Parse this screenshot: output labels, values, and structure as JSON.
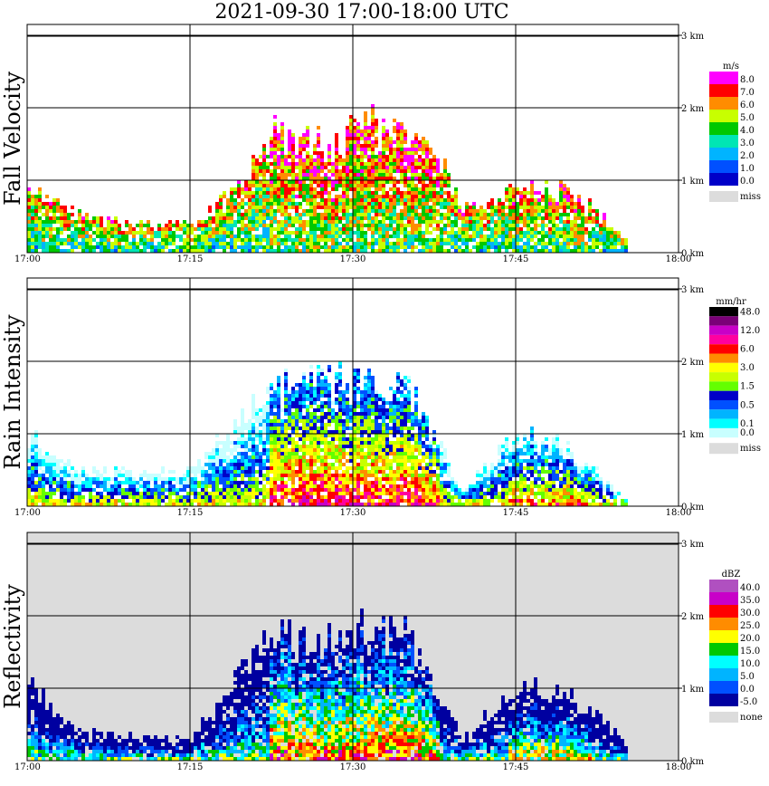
{
  "title": "2021-09-30   17:00-18:00 UTC",
  "time_labels": [
    "17:00",
    "17:15",
    "17:30",
    "17:45",
    "18:00"
  ],
  "height_labels": [
    "0 km",
    "1 km",
    "2 km",
    "3 km"
  ],
  "panels": [
    {
      "ylabel": "Fall Velocity",
      "unit": "m/s",
      "background": "#ffffff",
      "legend": [
        {
          "label": "8.0",
          "color": "#ff00ff"
        },
        {
          "label": "7.0",
          "color": "#ff0000"
        },
        {
          "label": "6.0",
          "color": "#ff8c00"
        },
        {
          "label": "5.0",
          "color": "#c8ff00"
        },
        {
          "label": "4.0",
          "color": "#00c800"
        },
        {
          "label": "3.0",
          "color": "#00e6b4"
        },
        {
          "label": "2.0",
          "color": "#00b4ff"
        },
        {
          "label": "1.0",
          "color": "#0050ff"
        },
        {
          "label": "0.0",
          "color": "#0000c8"
        }
      ],
      "missing_label": "miss"
    },
    {
      "ylabel": "Rain Intensity",
      "unit": "mm/hr",
      "background": "#ffffff",
      "legend": [
        {
          "label": "48.0",
          "color": "#000000"
        },
        {
          "label": "",
          "color": "#7a0078"
        },
        {
          "label": "12.0",
          "color": "#c800c8"
        },
        {
          "label": "",
          "color": "#ff00a0"
        },
        {
          "label": "6.0",
          "color": "#ff0000"
        },
        {
          "label": "",
          "color": "#ff8c00"
        },
        {
          "label": "3.0",
          "color": "#ffff00"
        },
        {
          "label": "",
          "color": "#c8ff00"
        },
        {
          "label": "1.5",
          "color": "#64ff00"
        },
        {
          "label": "",
          "color": "#0000c8"
        },
        {
          "label": "0.5",
          "color": "#0050ff"
        },
        {
          "label": "",
          "color": "#00b4ff"
        },
        {
          "label": "0.1",
          "color": "#00ffff"
        },
        {
          "label": "0.0",
          "color": "#c8ffff"
        }
      ],
      "missing_label": "miss"
    },
    {
      "ylabel": "Reflectivity",
      "unit": "dBZ",
      "background": "#dcdcdc",
      "legend": [
        {
          "label": "40.0",
          "color": "#b050c0"
        },
        {
          "label": "35.0",
          "color": "#c800c8"
        },
        {
          "label": "30.0",
          "color": "#ff0000"
        },
        {
          "label": "25.0",
          "color": "#ff8c00"
        },
        {
          "label": "20.0",
          "color": "#ffff00"
        },
        {
          "label": "15.0",
          "color": "#00c800"
        },
        {
          "label": "10.0",
          "color": "#00ffff"
        },
        {
          "label": "5.0",
          "color": "#00b4ff"
        },
        {
          "label": "0.0",
          "color": "#0050ff"
        },
        {
          "label": "-5.0",
          "color": "#0000a0"
        }
      ],
      "missing_label": "none"
    }
  ],
  "chart_data": [
    {
      "type": "heatmap",
      "ylabel": "Fall Velocity",
      "unit": "m/s",
      "x_range": [
        "17:00",
        "18:00"
      ],
      "y_range_km": [
        0,
        3
      ],
      "grid": true,
      "echo_top_km": [
        {
          "time": "17:00",
          "top": 0.9
        },
        {
          "time": "17:05",
          "top": 0.5
        },
        {
          "time": "17:10",
          "top": 0.4
        },
        {
          "time": "17:15",
          "top": 0.4
        },
        {
          "time": "17:20",
          "top": 1.0
        },
        {
          "time": "17:22",
          "top": 1.7
        },
        {
          "time": "17:25",
          "top": 1.8
        },
        {
          "time": "17:28",
          "top": 1.5
        },
        {
          "time": "17:30",
          "top": 1.9
        },
        {
          "time": "17:35",
          "top": 1.7
        },
        {
          "time": "17:38",
          "top": 1.3
        },
        {
          "time": "17:40",
          "top": 0.6
        },
        {
          "time": "17:45",
          "top": 0.9
        },
        {
          "time": "17:50",
          "top": 0.9
        },
        {
          "time": "17:55",
          "top": 0.2
        }
      ]
    },
    {
      "type": "heatmap",
      "ylabel": "Rain Intensity",
      "unit": "mm/hr",
      "x_range": [
        "17:00",
        "18:00"
      ],
      "y_range_km": [
        0,
        3
      ],
      "grid": true,
      "echo_top_km": [
        {
          "time": "17:00",
          "top": 1.0
        },
        {
          "time": "17:05",
          "top": 0.5
        },
        {
          "time": "17:15",
          "top": 0.5
        },
        {
          "time": "17:22",
          "top": 1.7
        },
        {
          "time": "17:25",
          "top": 1.8
        },
        {
          "time": "17:30",
          "top": 1.8
        },
        {
          "time": "17:35",
          "top": 1.7
        },
        {
          "time": "17:40",
          "top": 0.2
        },
        {
          "time": "17:45",
          "top": 1.1
        },
        {
          "time": "17:50",
          "top": 0.8
        },
        {
          "time": "17:55",
          "top": 0.1
        }
      ]
    },
    {
      "type": "heatmap",
      "ylabel": "Reflectivity",
      "unit": "dBZ",
      "x_range": [
        "17:00",
        "18:00"
      ],
      "y_range_km": [
        0,
        3
      ],
      "grid": true,
      "echo_top_km": [
        {
          "time": "17:00",
          "top": 1.1
        },
        {
          "time": "17:05",
          "top": 0.4
        },
        {
          "time": "17:15",
          "top": 0.3
        },
        {
          "time": "17:22",
          "top": 1.8
        },
        {
          "time": "17:25",
          "top": 1.8
        },
        {
          "time": "17:30",
          "top": 1.9
        },
        {
          "time": "17:35",
          "top": 1.8
        },
        {
          "time": "17:40",
          "top": 0.3
        },
        {
          "time": "17:45",
          "top": 1.1
        },
        {
          "time": "17:50",
          "top": 0.9
        },
        {
          "time": "17:55",
          "top": 0.3
        }
      ]
    }
  ]
}
